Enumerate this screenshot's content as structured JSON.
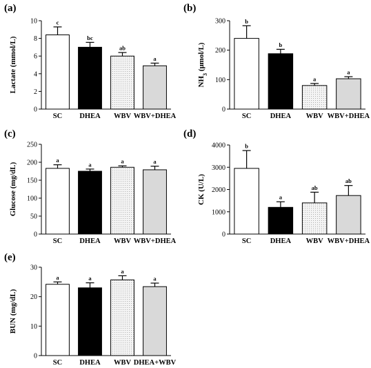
{
  "chart_data": [
    {
      "panel": "(a)",
      "type": "bar",
      "ylabel": "Lactate (mmol/L)",
      "ylim": [
        0,
        10
      ],
      "yticks": [
        0,
        2,
        4,
        6,
        8,
        10
      ],
      "categories": [
        "SC",
        "DHEA",
        "WBV",
        "WBV+DHEA"
      ],
      "values": [
        8.4,
        7.0,
        6.0,
        4.9
      ],
      "errors": [
        0.9,
        0.55,
        0.4,
        0.3
      ],
      "significance": [
        "c",
        "bc",
        "ab",
        "a"
      ],
      "bar_styles": [
        "white",
        "black",
        "dotted",
        "gray"
      ]
    },
    {
      "panel": "(b)",
      "type": "bar",
      "ylabel": "NH3 (μmol/L)",
      "ylabel_main": "NH",
      "ylabel_sub": "3",
      "ylabel_rest": " (μmol/L)",
      "ylim": [
        0,
        300
      ],
      "yticks": [
        0,
        100,
        200,
        300
      ],
      "categories": [
        "SC",
        "DHEA",
        "WBV",
        "WBV+DHEA"
      ],
      "values": [
        240,
        188,
        80,
        103
      ],
      "errors": [
        43,
        15,
        7,
        7
      ],
      "significance": [
        "b",
        "b",
        "a",
        "a"
      ],
      "bar_styles": [
        "white",
        "black",
        "dotted",
        "gray"
      ]
    },
    {
      "panel": "(c)",
      "type": "bar",
      "ylabel": "Glucose (mg/dL)",
      "ylim": [
        0,
        250
      ],
      "yticks": [
        0,
        50,
        100,
        150,
        200,
        250
      ],
      "categories": [
        "SC",
        "DHEA",
        "WBV",
        "WBV+DHEA"
      ],
      "values": [
        183,
        175,
        186,
        179
      ],
      "errors": [
        10,
        6,
        4,
        10
      ],
      "significance": [
        "a",
        "a",
        "a",
        "a"
      ],
      "bar_styles": [
        "white",
        "black",
        "dotted",
        "gray"
      ]
    },
    {
      "panel": "(d)",
      "type": "bar",
      "ylabel": "CK (U/L)",
      "ylim": [
        0,
        4000
      ],
      "yticks": [
        0,
        1000,
        2000,
        3000,
        4000
      ],
      "categories": [
        "SC",
        "DHEA",
        "WBV",
        "WBV+DHEA"
      ],
      "values": [
        2950,
        1200,
        1400,
        1730
      ],
      "errors": [
        800,
        250,
        480,
        450
      ],
      "significance": [
        "b",
        "a",
        "ab",
        "ab"
      ],
      "bar_styles": [
        "white",
        "black",
        "dotted",
        "gray"
      ]
    },
    {
      "panel": "(e)",
      "type": "bar",
      "ylabel": "BUN (mg/dL)",
      "ylim": [
        0,
        30
      ],
      "yticks": [
        0,
        10,
        20,
        30
      ],
      "categories": [
        "SC",
        "DHEA",
        "WBV",
        "DHEA+WBV"
      ],
      "values": [
        24.2,
        23.0,
        25.7,
        23.4
      ],
      "errors": [
        0.8,
        1.7,
        1.4,
        1.2
      ],
      "significance": [
        "a",
        "a",
        "a",
        "a"
      ],
      "bar_styles": [
        "white",
        "black",
        "dotted",
        "gray"
      ]
    }
  ],
  "colors": {
    "axis": "#000000",
    "bar_black": "#000000",
    "bar_gray": "#d9d9d9",
    "bar_white": "#ffffff",
    "bar_dotted_bg": "#f4f4f4",
    "bar_dotted_dot": "#8a8a8a"
  }
}
